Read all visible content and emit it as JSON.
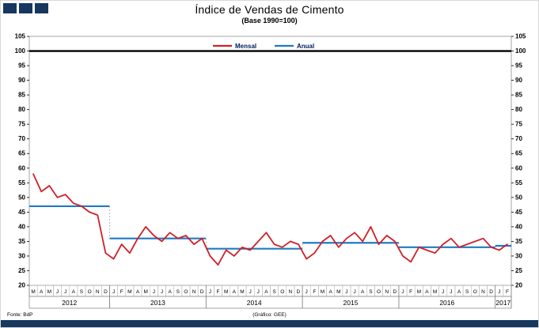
{
  "header": {
    "title": "Índice de Vendas de Cimento",
    "subtitle": "(Base 1990=100)"
  },
  "footer": {
    "source": "Fonte: BdP",
    "credit": "(Gráfico: GEE)"
  },
  "colors": {
    "brand_navy": "#17375E",
    "mensal_red": "#D02026",
    "anual_blue": "#1F7AC2",
    "baseline_black": "#000000",
    "legend_text": "#002060"
  },
  "chart_data": {
    "type": "line",
    "title": "Índice de Vendas de Cimento",
    "subtitle": "(Base 1990=100)",
    "ylabel": "",
    "xlabel": "",
    "ylim": [
      20,
      105
    ],
    "ytick_step": 5,
    "baseline": 100,
    "legend_position": "top-center",
    "grid": false,
    "years": [
      {
        "year": "2012",
        "months": [
          "M",
          "A",
          "M",
          "J",
          "J",
          "A",
          "S",
          "O",
          "N",
          "D"
        ]
      },
      {
        "year": "2013",
        "months": [
          "J",
          "F",
          "M",
          "A",
          "M",
          "J",
          "J",
          "A",
          "S",
          "O",
          "N",
          "D"
        ]
      },
      {
        "year": "2014",
        "months": [
          "J",
          "F",
          "M",
          "A",
          "M",
          "J",
          "J",
          "A",
          "S",
          "O",
          "N",
          "D"
        ]
      },
      {
        "year": "2015",
        "months": [
          "J",
          "F",
          "M",
          "A",
          "M",
          "J",
          "J",
          "A",
          "S",
          "O",
          "N",
          "D"
        ]
      },
      {
        "year": "2016",
        "months": [
          "J",
          "F",
          "M",
          "A",
          "M",
          "J",
          "J",
          "A",
          "S",
          "O",
          "N",
          "D"
        ]
      },
      {
        "year": "2017",
        "months": [
          "J",
          "F"
        ]
      }
    ],
    "series": [
      {
        "name": "Mensal",
        "color": "#D02026",
        "kind": "monthly",
        "values": [
          58,
          52,
          54,
          50,
          51,
          48,
          47,
          45,
          44,
          31,
          29,
          34,
          31,
          36,
          40,
          37,
          35,
          38,
          36,
          37,
          34,
          36,
          30,
          27,
          32,
          30,
          33,
          32,
          35,
          38,
          34,
          33,
          35,
          34,
          29,
          31,
          35,
          37,
          33,
          36,
          38,
          35,
          40,
          34,
          37,
          35,
          30,
          28,
          33,
          32,
          31,
          34,
          36,
          33,
          34,
          35,
          36,
          33,
          32,
          34
        ]
      },
      {
        "name": "Anual",
        "color": "#1F7AC2",
        "kind": "step",
        "values_by_year": [
          47,
          36,
          32.5,
          34.5,
          33,
          33.5
        ]
      }
    ]
  }
}
